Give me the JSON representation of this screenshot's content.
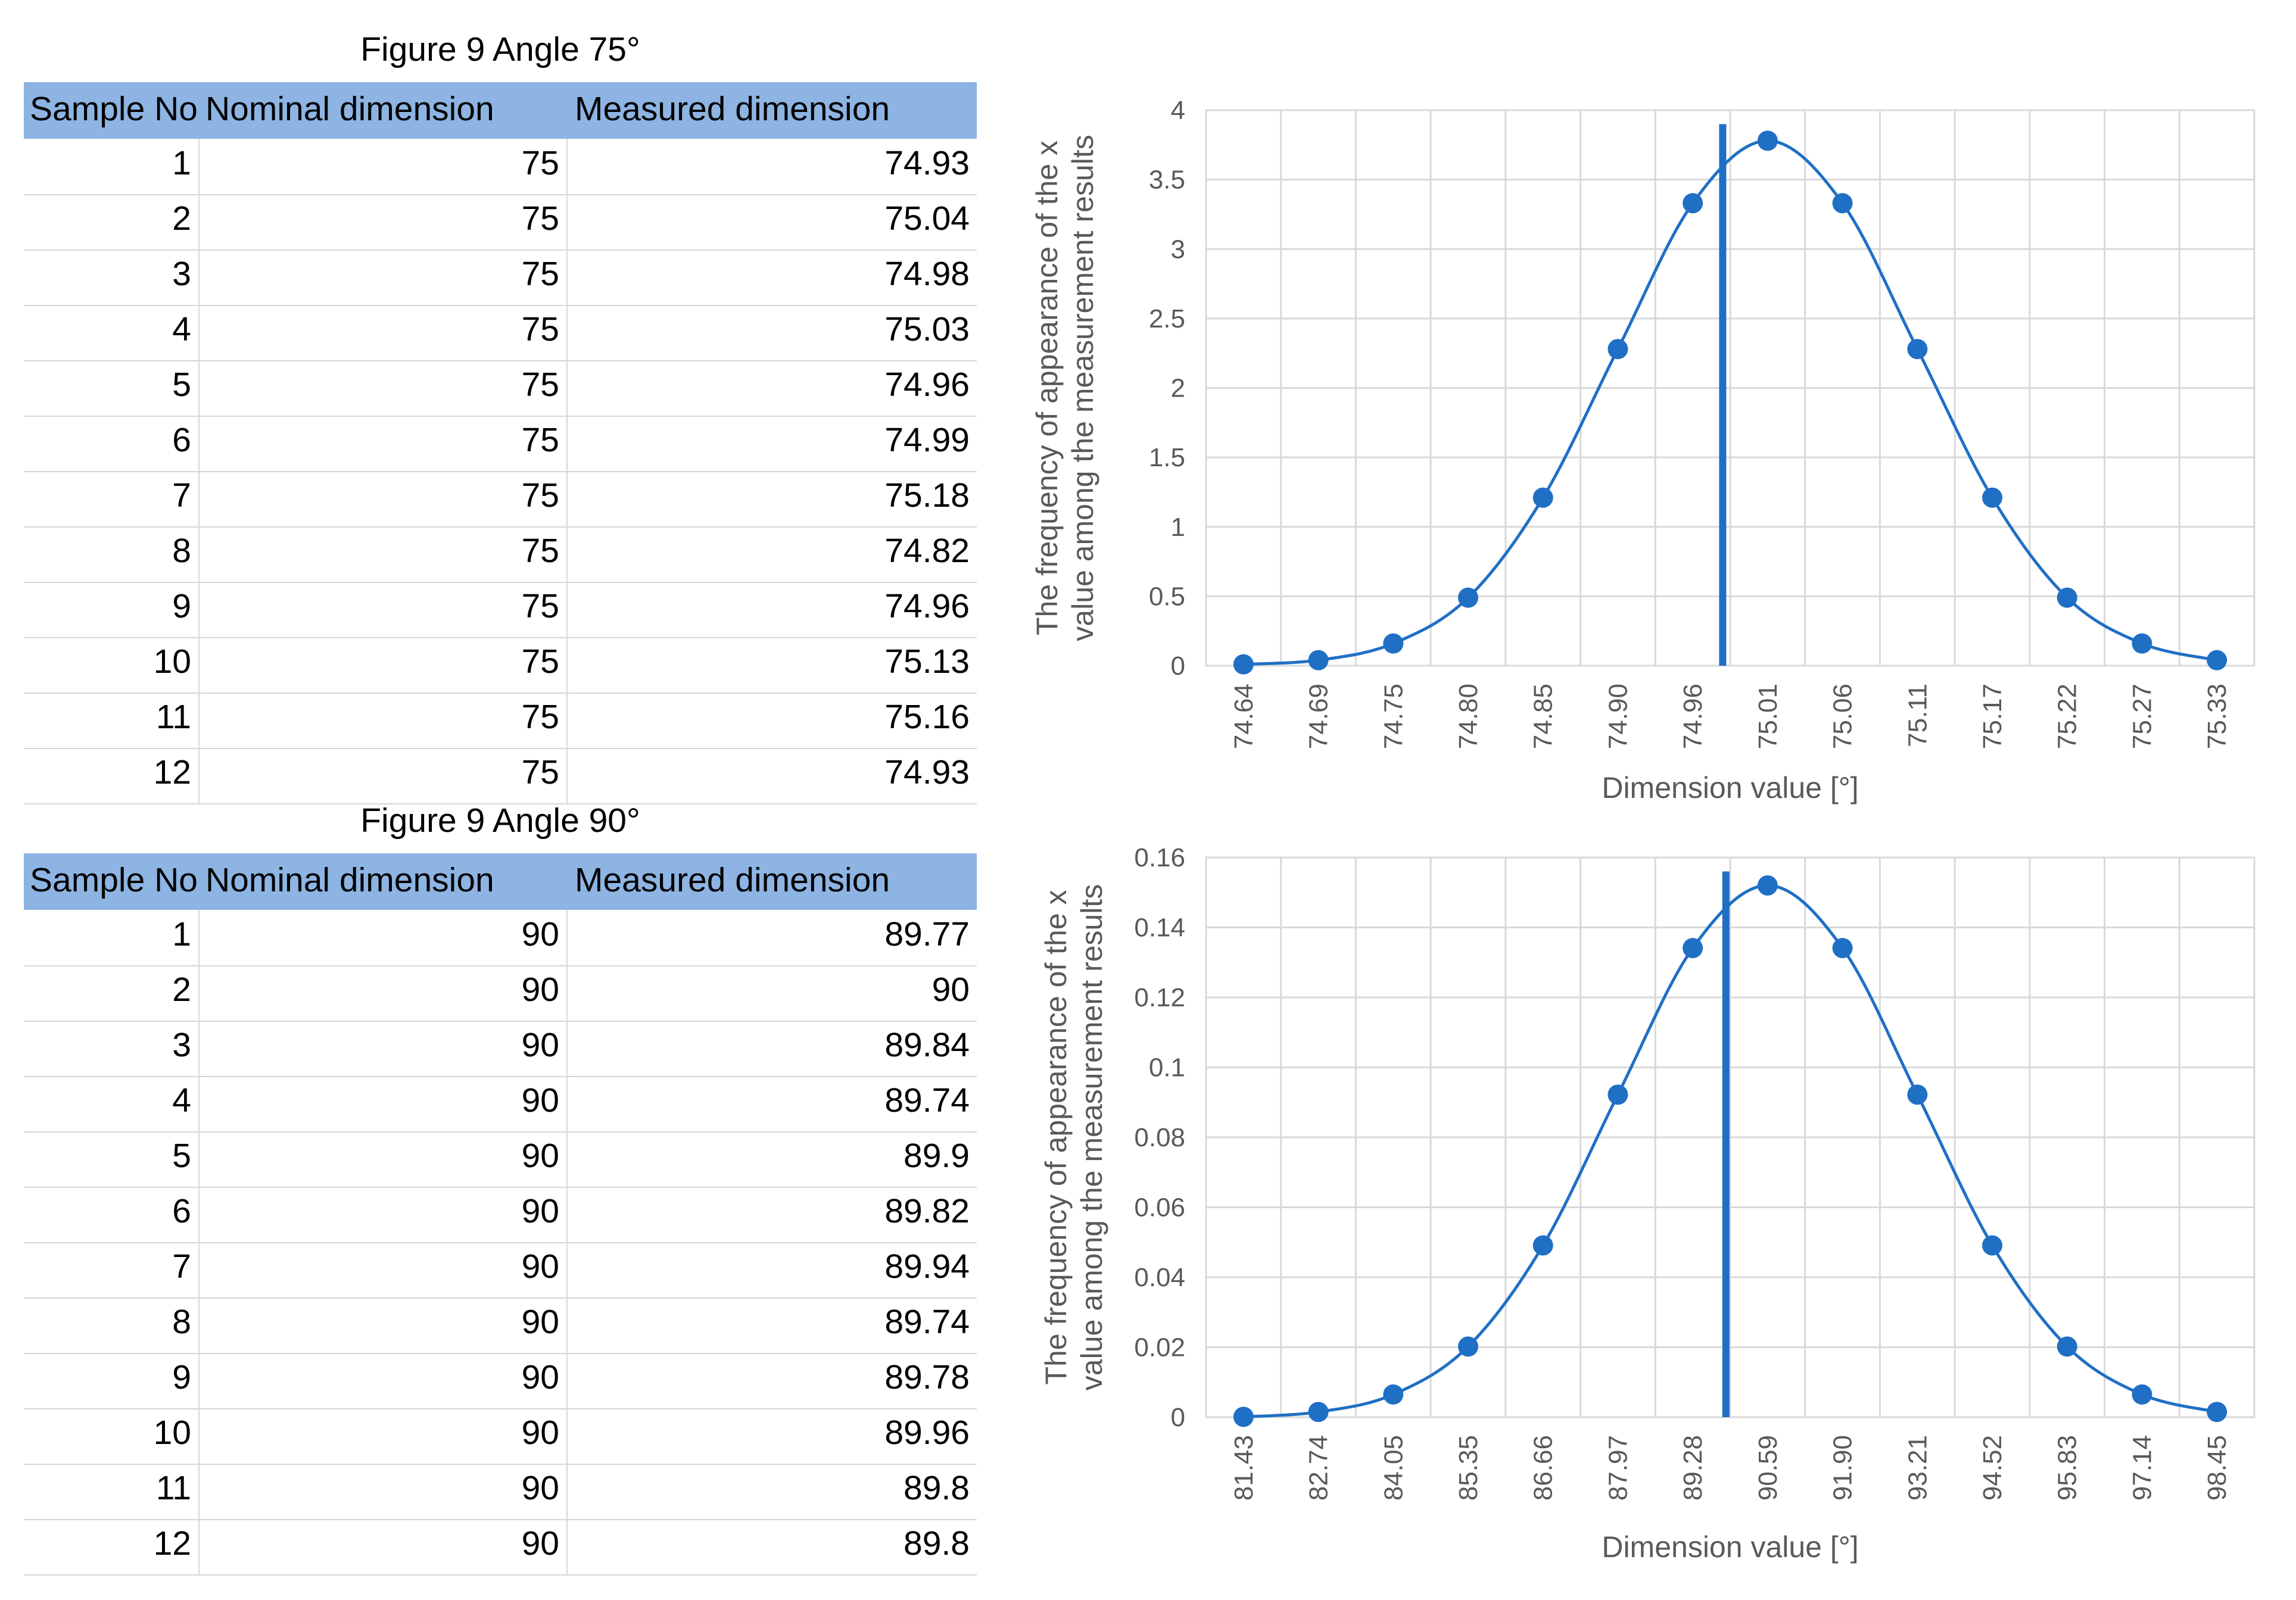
{
  "tables": [
    {
      "title": "Figure 9 Angle 75°",
      "headers": [
        "Sample No",
        "Nominal dimension",
        "Measured dimension"
      ],
      "rows": [
        [
          "1",
          "75",
          "74.93"
        ],
        [
          "2",
          "75",
          "75.04"
        ],
        [
          "3",
          "75",
          "74.98"
        ],
        [
          "4",
          "75",
          "75.03"
        ],
        [
          "5",
          "75",
          "74.96"
        ],
        [
          "6",
          "75",
          "74.99"
        ],
        [
          "7",
          "75",
          "75.18"
        ],
        [
          "8",
          "75",
          "74.82"
        ],
        [
          "9",
          "75",
          "74.96"
        ],
        [
          "10",
          "75",
          "75.13"
        ],
        [
          "11",
          "75",
          "75.16"
        ],
        [
          "12",
          "75",
          "74.93"
        ]
      ]
    },
    {
      "title": "Figure 9 Angle 90°",
      "headers": [
        "Sample No",
        "Nominal dimension",
        "Measured dimension"
      ],
      "rows": [
        [
          "1",
          "90",
          "89.77"
        ],
        [
          "2",
          "90",
          "90"
        ],
        [
          "3",
          "90",
          "89.84"
        ],
        [
          "4",
          "90",
          "89.74"
        ],
        [
          "5",
          "90",
          "89.9"
        ],
        [
          "6",
          "90",
          "89.82"
        ],
        [
          "7",
          "90",
          "89.94"
        ],
        [
          "8",
          "90",
          "89.74"
        ],
        [
          "9",
          "90",
          "89.78"
        ],
        [
          "10",
          "90",
          "89.96"
        ],
        [
          "11",
          "90",
          "89.8"
        ],
        [
          "12",
          "90",
          "89.8"
        ]
      ]
    }
  ],
  "chart_data": [
    {
      "type": "scatter",
      "xlabel": "Dimension value [°]",
      "ylabel": "The frequency of appearance of the x value among the measurement results",
      "ylim": [
        0,
        4
      ],
      "yticks": [
        "0",
        "0.5",
        "1",
        "1.5",
        "2",
        "2.5",
        "3",
        "3.5",
        "4"
      ],
      "categories": [
        "74.64",
        "74.69",
        "74.75",
        "74.80",
        "74.85",
        "74.90",
        "74.96",
        "75.01",
        "75.06",
        "75.11",
        "75.17",
        "75.22",
        "75.27",
        "75.33"
      ],
      "values": [
        0.01,
        0.04,
        0.16,
        0.49,
        1.21,
        2.28,
        3.33,
        3.78,
        3.33,
        2.28,
        1.21,
        0.49,
        0.16,
        0.04
      ],
      "vertical_line_x": 74.98,
      "grid": true,
      "color": "#1f6fc5"
    },
    {
      "type": "scatter",
      "xlabel": "Dimension value [°]",
      "ylabel": "The frequency of appearance of the x value among the measurement results",
      "ylim": [
        0,
        0.16
      ],
      "yticks": [
        "0",
        "0.02",
        "0.04",
        "0.06",
        "0.08",
        "0.1",
        "0.12",
        "0.14",
        "0.16"
      ],
      "categories": [
        "81.43",
        "82.74",
        "84.05",
        "85.35",
        "86.66",
        "87.97",
        "89.28",
        "90.59",
        "91.90",
        "93.21",
        "94.52",
        "95.83",
        "97.14",
        "98.45"
      ],
      "values": [
        0.0001,
        0.0015,
        0.0065,
        0.0202,
        0.0491,
        0.0922,
        0.1341,
        0.152,
        0.1341,
        0.0922,
        0.0491,
        0.0202,
        0.0065,
        0.0015
      ],
      "vertical_line_x": 89.86,
      "grid": true,
      "color": "#1f6fc5"
    }
  ]
}
